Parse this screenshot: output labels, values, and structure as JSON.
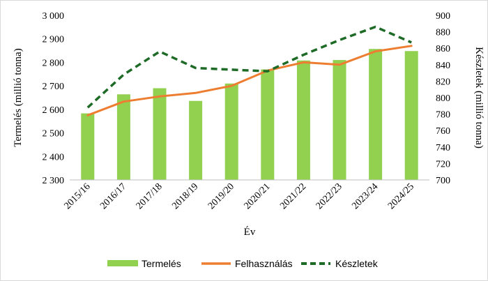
{
  "chart_data": {
    "type": "bar",
    "categories": [
      "2015/16",
      "2016/17",
      "2017/18",
      "2018/19",
      "2019/20",
      "2020/21",
      "2021/22",
      "2022/23",
      "2023/24",
      "2024/25"
    ],
    "xlabel": "Év",
    "ylabel": "Termelés (millió tonna)",
    "y2label": "Készletek (millió tonna)",
    "ylim": [
      2300,
      3000
    ],
    "y2lim": [
      700,
      900
    ],
    "y_ticks": [
      "2 300",
      "2 400",
      "2 500",
      "2 600",
      "2 700",
      "2 800",
      "2 900",
      "3 000"
    ],
    "y_tick_values": [
      2300,
      2400,
      2500,
      2600,
      2700,
      2800,
      2900,
      3000
    ],
    "y2_ticks": [
      "700",
      "720",
      "740",
      "760",
      "780",
      "800",
      "820",
      "840",
      "860",
      "880",
      "900"
    ],
    "y2_tick_values": [
      700,
      720,
      740,
      760,
      780,
      800,
      820,
      840,
      860,
      880,
      900
    ],
    "grid": false,
    "legend_position": "bottom",
    "series": [
      {
        "name": "Termelés",
        "kind": "bar",
        "axis": "left",
        "color": "#92d050",
        "values": [
          2583,
          2664,
          2690,
          2636,
          2710,
          2770,
          2808,
          2810,
          2857,
          2848
        ]
      },
      {
        "name": "Felhasználás",
        "kind": "line",
        "axis": "left",
        "color": "#ed7d31",
        "values": [
          2575,
          2633,
          2655,
          2670,
          2700,
          2765,
          2800,
          2790,
          2847,
          2870
        ]
      },
      {
        "name": "Készletek",
        "kind": "dashed-line",
        "axis": "right",
        "color": "#1e6b27",
        "values": [
          788,
          828,
          856,
          836,
          834,
          832,
          852,
          870,
          886,
          867
        ]
      }
    ]
  }
}
